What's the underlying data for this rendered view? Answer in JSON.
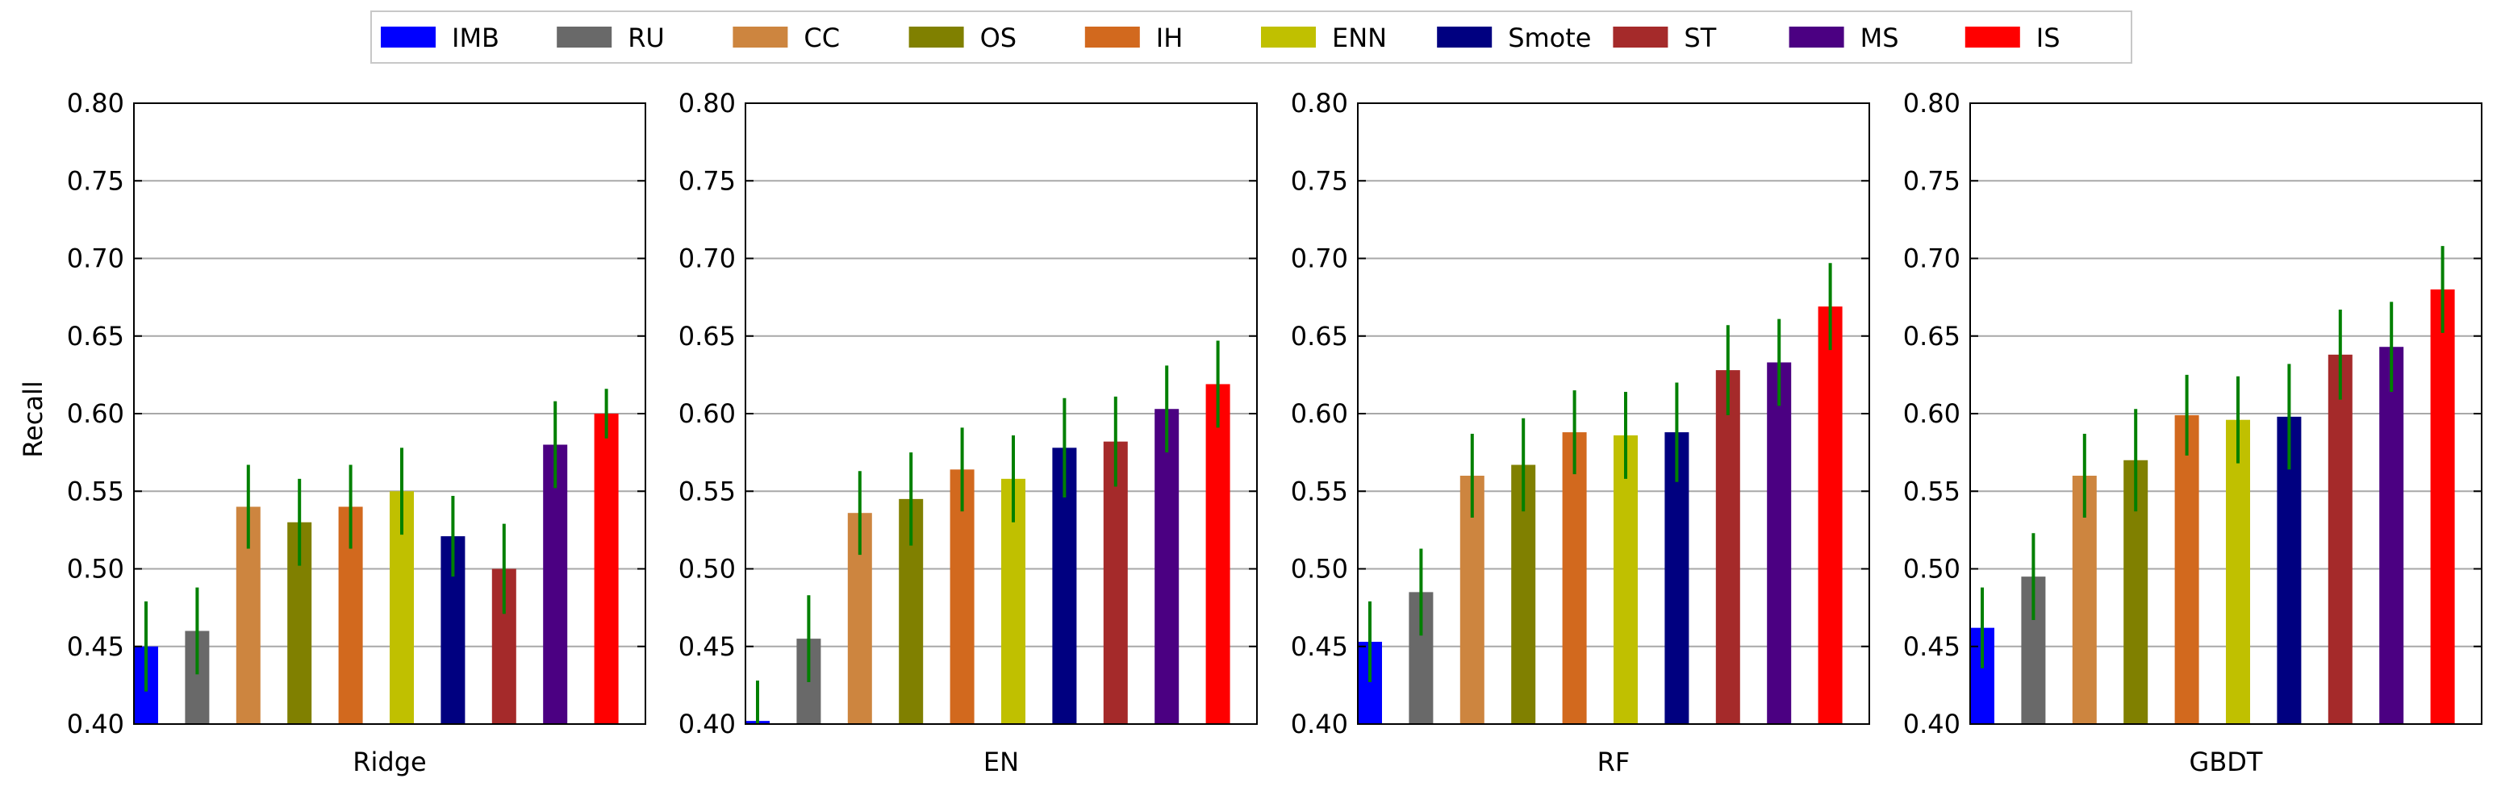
{
  "chart_data": {
    "type": "bar",
    "ylabel": "Recall",
    "ylim": [
      0.4,
      0.8
    ],
    "yticks": [
      "0.40",
      "0.45",
      "0.50",
      "0.55",
      "0.60",
      "0.65",
      "0.70",
      "0.75",
      "0.80"
    ],
    "grid": "horizontal",
    "legend_placement": "top-center",
    "legend": [
      {
        "name": "IMB",
        "color": "#0000ff"
      },
      {
        "name": "RU",
        "color": "#696969"
      },
      {
        "name": "CC",
        "color": "#cd853f"
      },
      {
        "name": "OS",
        "color": "#808000"
      },
      {
        "name": "IH",
        "color": "#d2691e"
      },
      {
        "name": "ENN",
        "color": "#c0c000"
      },
      {
        "name": "Smote",
        "color": "#000080"
      },
      {
        "name": "ST",
        "color": "#a52a2a"
      },
      {
        "name": "MS",
        "color": "#4b0082"
      },
      {
        "name": "IS",
        "color": "#ff0000"
      }
    ],
    "error_bar_color": "#008000",
    "panels": [
      {
        "xlabel": "Ridge",
        "values": [
          0.45,
          0.46,
          0.54,
          0.53,
          0.54,
          0.55,
          0.521,
          0.5,
          0.58,
          0.6
        ],
        "errors": [
          0.029,
          0.028,
          0.027,
          0.028,
          0.027,
          0.028,
          0.026,
          0.029,
          0.028,
          0.016
        ]
      },
      {
        "xlabel": "EN",
        "values": [
          0.402,
          0.455,
          0.536,
          0.545,
          0.564,
          0.558,
          0.578,
          0.582,
          0.603,
          0.619
        ],
        "errors": [
          0.026,
          0.028,
          0.027,
          0.03,
          0.027,
          0.028,
          0.032,
          0.029,
          0.028,
          0.028
        ]
      },
      {
        "xlabel": "RF",
        "values": [
          0.453,
          0.485,
          0.56,
          0.567,
          0.588,
          0.586,
          0.588,
          0.628,
          0.633,
          0.669
        ],
        "errors": [
          0.026,
          0.028,
          0.027,
          0.03,
          0.027,
          0.028,
          0.032,
          0.029,
          0.028,
          0.028
        ]
      },
      {
        "xlabel": "GBDT",
        "values": [
          0.462,
          0.495,
          0.56,
          0.57,
          0.599,
          0.596,
          0.598,
          0.638,
          0.643,
          0.68
        ],
        "errors": [
          0.026,
          0.028,
          0.027,
          0.033,
          0.026,
          0.028,
          0.034,
          0.029,
          0.029,
          0.028
        ]
      }
    ]
  }
}
